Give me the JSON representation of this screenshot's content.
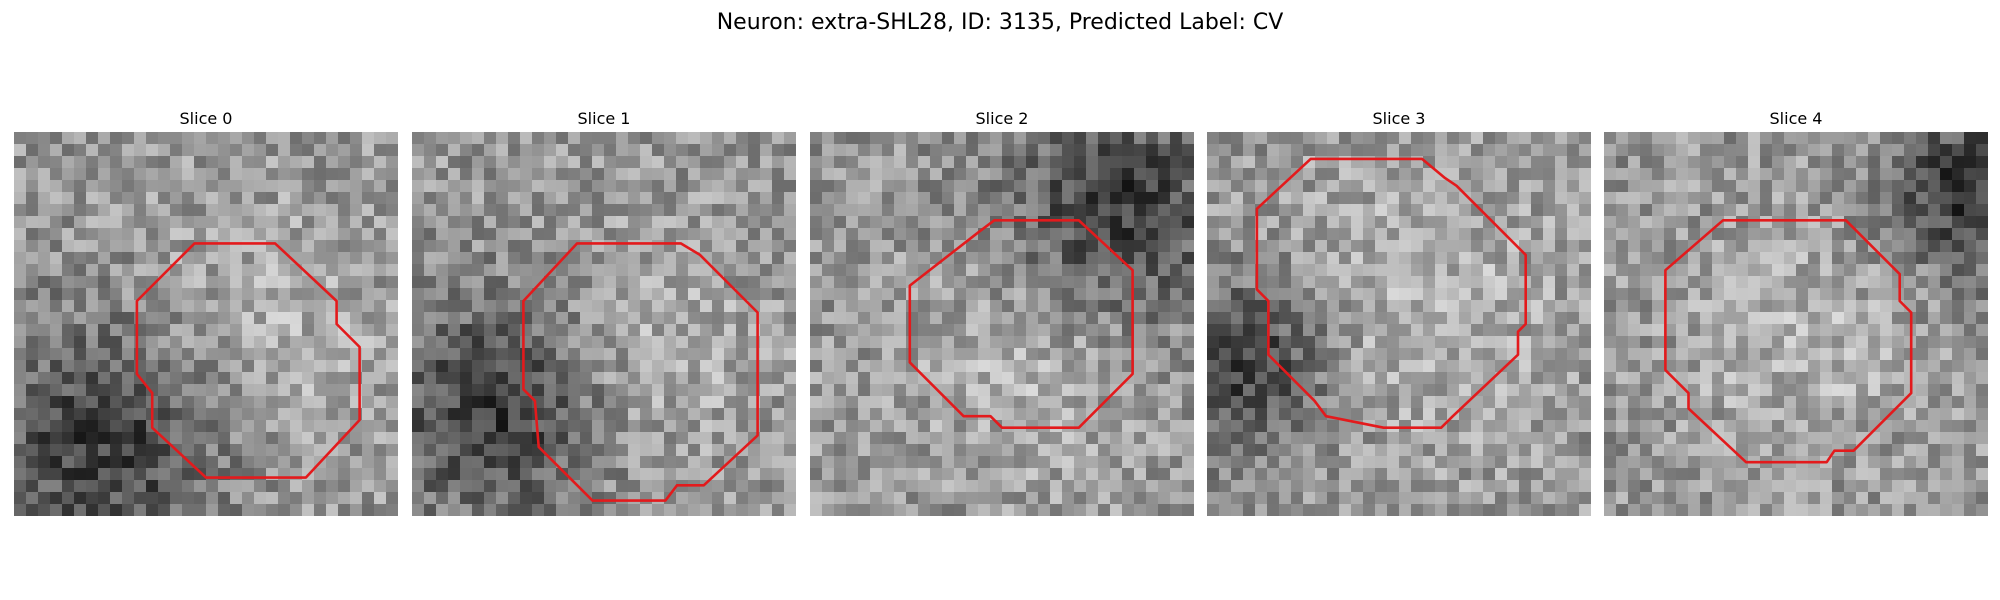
{
  "figure": {
    "title": "Neuron: extra-SHL28, ID: 3135, Predicted Label: CV"
  },
  "contour_color": "#e31a1c",
  "slices": [
    {
      "title": "Slice 0",
      "seed": 11,
      "dark_blob": [
        0.25,
        0.8,
        0.22
      ],
      "light_blob": [
        0.62,
        0.55,
        0.25
      ],
      "contour": [
        [
          0.47,
          0.29
        ],
        [
          0.68,
          0.29
        ],
        [
          0.84,
          0.44
        ],
        [
          0.84,
          0.5
        ],
        [
          0.9,
          0.56
        ],
        [
          0.9,
          0.75
        ],
        [
          0.76,
          0.9
        ],
        [
          0.5,
          0.9
        ],
        [
          0.36,
          0.77
        ],
        [
          0.36,
          0.68
        ],
        [
          0.32,
          0.63
        ],
        [
          0.32,
          0.44
        ]
      ]
    },
    {
      "title": "Slice 1",
      "seed": 23,
      "dark_blob": [
        0.22,
        0.72,
        0.2
      ],
      "light_blob": [
        0.6,
        0.58,
        0.22
      ],
      "contour": [
        [
          0.43,
          0.29
        ],
        [
          0.7,
          0.29
        ],
        [
          0.75,
          0.32
        ],
        [
          0.9,
          0.47
        ],
        [
          0.9,
          0.79
        ],
        [
          0.76,
          0.92
        ],
        [
          0.69,
          0.92
        ],
        [
          0.66,
          0.96
        ],
        [
          0.47,
          0.96
        ],
        [
          0.33,
          0.82
        ],
        [
          0.32,
          0.7
        ],
        [
          0.29,
          0.67
        ],
        [
          0.29,
          0.44
        ]
      ]
    },
    {
      "title": "Slice 2",
      "seed": 37,
      "dark_blob": [
        0.8,
        0.2,
        0.2
      ],
      "light_blob": [
        0.58,
        0.6,
        0.22
      ],
      "contour": [
        [
          0.44,
          0.26
        ],
        [
          0.48,
          0.23
        ],
        [
          0.7,
          0.23
        ],
        [
          0.84,
          0.36
        ],
        [
          0.84,
          0.63
        ],
        [
          0.7,
          0.77
        ],
        [
          0.5,
          0.77
        ],
        [
          0.47,
          0.74
        ],
        [
          0.4,
          0.74
        ],
        [
          0.26,
          0.6
        ],
        [
          0.26,
          0.4
        ]
      ]
    },
    {
      "title": "Slice 3",
      "seed": 53,
      "dark_blob": [
        0.1,
        0.6,
        0.15
      ],
      "light_blob": [
        0.55,
        0.45,
        0.28
      ],
      "contour": [
        [
          0.27,
          0.07
        ],
        [
          0.56,
          0.07
        ],
        [
          0.62,
          0.12
        ],
        [
          0.65,
          0.14
        ],
        [
          0.83,
          0.32
        ],
        [
          0.83,
          0.5
        ],
        [
          0.81,
          0.52
        ],
        [
          0.81,
          0.58
        ],
        [
          0.64,
          0.74
        ],
        [
          0.61,
          0.77
        ],
        [
          0.46,
          0.77
        ],
        [
          0.31,
          0.74
        ],
        [
          0.28,
          0.7
        ],
        [
          0.16,
          0.58
        ],
        [
          0.16,
          0.44
        ],
        [
          0.13,
          0.41
        ],
        [
          0.13,
          0.2
        ]
      ]
    },
    {
      "title": "Slice 4",
      "seed": 71,
      "dark_blob": [
        0.95,
        0.15,
        0.15
      ],
      "light_blob": [
        0.5,
        0.55,
        0.22
      ],
      "contour": [
        [
          0.31,
          0.23
        ],
        [
          0.63,
          0.23
        ],
        [
          0.77,
          0.37
        ],
        [
          0.77,
          0.44
        ],
        [
          0.8,
          0.47
        ],
        [
          0.8,
          0.68
        ],
        [
          0.65,
          0.83
        ],
        [
          0.6,
          0.83
        ],
        [
          0.58,
          0.86
        ],
        [
          0.37,
          0.86
        ],
        [
          0.22,
          0.72
        ],
        [
          0.22,
          0.68
        ],
        [
          0.16,
          0.62
        ],
        [
          0.16,
          0.36
        ]
      ]
    }
  ]
}
